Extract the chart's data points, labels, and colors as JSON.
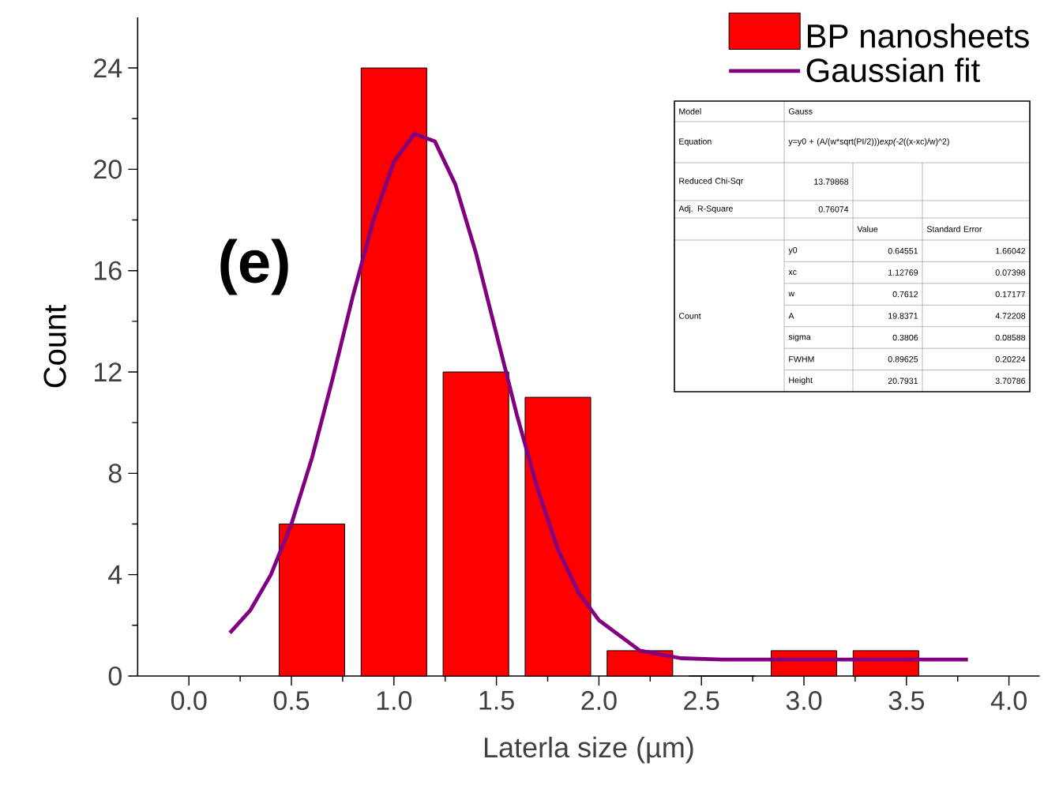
{
  "chart_data": {
    "type": "histogram",
    "xlabel": "Laterla size (µm)",
    "ylabel": "Count",
    "bins": [
      0.4,
      0.8,
      1.2,
      1.6,
      2.0,
      2.4,
      2.8,
      3.2,
      3.6
    ],
    "series": [
      {
        "name": "BP nanosheets",
        "color": "#ff0000",
        "values": [
          6,
          24,
          12,
          11,
          1,
          0,
          1,
          1
        ]
      },
      {
        "name": "Gaussian fit",
        "type": "line",
        "color": "#800080",
        "x": [
          0.2,
          0.3,
          0.4,
          0.5,
          0.6,
          0.7,
          0.8,
          0.9,
          1.0,
          1.1,
          1.2,
          1.3,
          1.4,
          1.5,
          1.6,
          1.7,
          1.8,
          1.9,
          2.0,
          2.2,
          2.4,
          2.6,
          3.0,
          3.4,
          3.8
        ],
        "values": [
          1.7,
          2.6,
          4.0,
          6.0,
          8.6,
          11.7,
          15.0,
          18.0,
          20.3,
          21.4,
          21.1,
          19.4,
          16.7,
          13.5,
          10.3,
          7.4,
          5.0,
          3.3,
          2.2,
          1.0,
          0.7,
          0.65,
          0.65,
          0.65,
          0.65
        ]
      }
    ],
    "xlim": [
      -0.25,
      4.15
    ],
    "ylim": [
      0,
      26
    ],
    "xticks": [
      {
        "value": 0,
        "label": "0.0"
      },
      0.5,
      {
        "value": 1,
        "label": "1.0"
      },
      1.5,
      {
        "value": 2,
        "label": "2.0"
      },
      2.5,
      {
        "value": 3,
        "label": "3.0"
      },
      3.5,
      {
        "value": 4,
        "label": "4.0"
      }
    ],
    "yticks": [
      0,
      4,
      8,
      12,
      16,
      20,
      24
    ],
    "legend": "top right",
    "marker": "none",
    "line_style": "solid",
    "annotations": [
      "(e)",
      "Model",
      "Gauss",
      "Equation",
      "y=y0 + (A/(w*sqrt(PI/2)))*exp(-2*((x-xc)/w)^2)",
      "Reduced Chi-Sqr",
      "13.79868",
      "Adj. R-Square",
      "0.76074",
      "Value",
      "Standard Error",
      "Count",
      "y0",
      "0.64551",
      "1.66042",
      "xc",
      "1.12769",
      "0.07398",
      "w",
      "0.7612",
      "0.17177",
      "A",
      "19.8371",
      "4.72208",
      "sigma",
      "0.3806",
      "0.08588",
      "FWHM",
      "0.89625",
      "0.20224",
      "Height",
      "20.7931",
      "3.70786"
    ]
  }
}
